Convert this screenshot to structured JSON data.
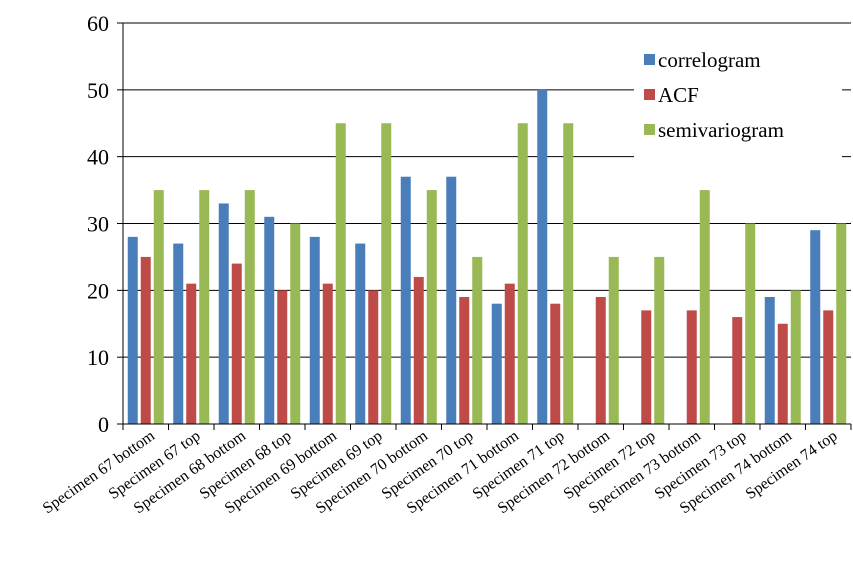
{
  "chart_data": {
    "type": "bar",
    "categories": [
      "Specimen 67 bottom",
      "Specimen 67 top",
      "Specimen 68 bottom",
      "Specimen 68 top",
      "Specimen 69 bottom",
      "Specimen 69 top",
      "Specimen 70 bottom",
      "Specimen 70 top",
      "Specimen 71 bottom",
      "Specimen 71 top",
      "Specimen 72 bottom",
      "Specimen 72 top",
      "Specimen 73 bottom",
      "Specimen 73 top",
      "Specimen 74 bottom",
      "Specimen 74 top"
    ],
    "series": [
      {
        "name": "correlogram",
        "color": "#4a7ebb",
        "values": [
          28,
          27,
          33,
          31,
          28,
          27,
          37,
          37,
          18,
          50,
          0,
          0,
          0,
          0,
          19,
          29
        ]
      },
      {
        "name": "ACF",
        "color": "#be4b48",
        "values": [
          25,
          21,
          24,
          20,
          21,
          20,
          22,
          19,
          21,
          18,
          19,
          17,
          17,
          16,
          15,
          17
        ]
      },
      {
        "name": "semivariogram",
        "color": "#98b954",
        "values": [
          35,
          35,
          35,
          30,
          45,
          45,
          35,
          25,
          45,
          45,
          25,
          25,
          35,
          30,
          20,
          30
        ]
      }
    ],
    "y_ticks": [
      "0",
      "10",
      "20",
      "30",
      "40",
      "50",
      "60"
    ],
    "ylim": [
      0,
      60
    ],
    "grid": true,
    "legend_position": "top-right",
    "title": "",
    "xlabel": "",
    "ylabel": ""
  }
}
